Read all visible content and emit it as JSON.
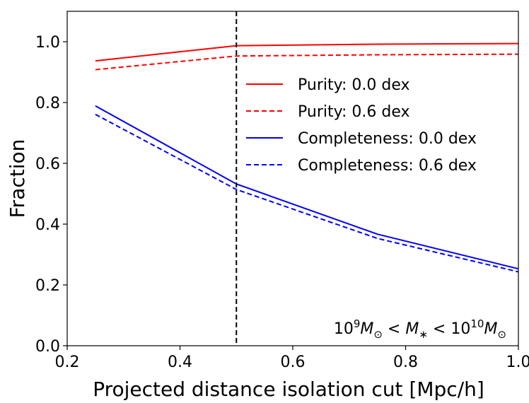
{
  "chart_data": {
    "type": "line",
    "title": "",
    "xlabel": "Projected distance isolation cut [Mpc/h]",
    "ylabel": "Fraction",
    "xlim": [
      0.2,
      1.0
    ],
    "ylim": [
      0.0,
      1.1
    ],
    "grid": false,
    "legend_position": "upper-right",
    "x": [
      0.25,
      0.5,
      0.75,
      1.0
    ],
    "x_ticks": [
      0.2,
      0.4,
      0.6,
      0.8,
      1.0
    ],
    "x_tick_labels": [
      "0.2",
      "0.4",
      "0.6",
      "0.8",
      "1.0"
    ],
    "y_ticks": [
      0.0,
      0.2,
      0.4,
      0.6,
      0.8,
      1.0
    ],
    "y_tick_labels": [
      "0.0",
      "0.2",
      "0.4",
      "0.6",
      "0.8",
      "1.0"
    ],
    "series": [
      {
        "name": "Purity: 0.0 dex",
        "values": [
          0.937,
          0.987,
          0.992,
          0.994
        ],
        "color": "#ff0000",
        "linestyle": "solid"
      },
      {
        "name": "Purity: 0.6 dex",
        "values": [
          0.908,
          0.953,
          0.957,
          0.959
        ],
        "color": "#ff0000",
        "linestyle": "dashed"
      },
      {
        "name": "Completeness: 0.0 dex",
        "values": [
          0.789,
          0.532,
          0.367,
          0.253
        ],
        "color": "#0000ff",
        "linestyle": "solid"
      },
      {
        "name": "Completeness: 0.6 dex",
        "values": [
          0.761,
          0.514,
          0.353,
          0.243
        ],
        "color": "#0000ff",
        "linestyle": "dashed"
      }
    ],
    "reference_lines": [
      {
        "orientation": "vertical",
        "x": 0.5,
        "color": "#000000",
        "linestyle": "dashed"
      }
    ],
    "annotation": {
      "position": "bottom-right",
      "parts": [
        {
          "text": "10",
          "style": "normal"
        },
        {
          "text": "9",
          "style": "sup"
        },
        {
          "text": "M",
          "style": "italic"
        },
        {
          "text": "⊙",
          "style": "sub"
        },
        {
          "text": " < ",
          "style": "normal"
        },
        {
          "text": "M",
          "style": "italic"
        },
        {
          "text": "∗",
          "style": "sub"
        },
        {
          "text": " < 10",
          "style": "normal"
        },
        {
          "text": "10",
          "style": "sup"
        },
        {
          "text": "M",
          "style": "italic"
        },
        {
          "text": "⊙",
          "style": "sub"
        }
      ]
    }
  }
}
